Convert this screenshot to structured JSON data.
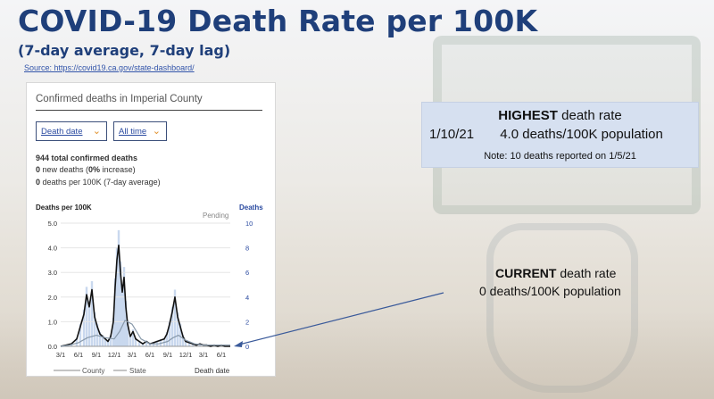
{
  "slide": {
    "title": "COVID-19 Death Rate per 100K",
    "subtitle": "(7-day average, 7-day lag)",
    "source": "Source: https://covid19.ca.gov/state-dashboard/"
  },
  "panel": {
    "title": "Confirmed deaths in Imperial County",
    "dropdown_1": "Death date",
    "dropdown_2": "All time",
    "total_value": "944",
    "total_label": " total confirmed deaths",
    "new_value": "0",
    "new_label": " new deaths (",
    "new_pct": "0%",
    "new_tail": " increase)",
    "rate_value": "0",
    "rate_label": " deaths per 100K (7-day average)"
  },
  "chart_data": {
    "type": "line",
    "ylabel_left": "Deaths per 100K",
    "ylabel_right": "Deaths",
    "pending_label": "Pending",
    "xlabel": "Death date",
    "categories": [
      "3/1",
      "6/1",
      "9/1",
      "12/1",
      "3/1",
      "6/1",
      "9/1",
      "12/1",
      "3/1",
      "6/1"
    ],
    "ylim_left": [
      0,
      5
    ],
    "yticks_left": [
      "0.0",
      "1.0",
      "2.0",
      "3.0",
      "4.0",
      "5.0"
    ],
    "ylim_right": [
      0,
      10
    ],
    "yticks_right": [
      "0",
      "2",
      "4",
      "6",
      "8",
      "10"
    ],
    "legend": [
      "County",
      "State"
    ],
    "series": [
      {
        "name": "County",
        "color": "#111111",
        "x": [
          0,
          0.3,
          0.6,
          0.9,
          1.1,
          1.3,
          1.45,
          1.6,
          1.75,
          1.9,
          2.05,
          2.2,
          2.35,
          2.5,
          2.65,
          2.8,
          2.95,
          3.05,
          3.15,
          3.25,
          3.35,
          3.45,
          3.55,
          3.65,
          3.75,
          3.9,
          4.05,
          4.2,
          4.4,
          4.6,
          4.8,
          5.0,
          5.2,
          5.4,
          5.6,
          5.8,
          5.95,
          6.1,
          6.25,
          6.4,
          6.55,
          6.7,
          6.85,
          7.0,
          7.2,
          7.4,
          7.6,
          7.8,
          8.0,
          8.2,
          8.4,
          8.6,
          8.8,
          9.0,
          9.2,
          9.5
        ],
        "values": [
          0,
          0.05,
          0.1,
          0.3,
          0.8,
          1.3,
          2.1,
          1.6,
          2.3,
          1.2,
          0.8,
          0.5,
          0.4,
          0.3,
          0.2,
          0.4,
          1.0,
          2.4,
          3.5,
          4.1,
          3.0,
          2.2,
          2.8,
          1.6,
          0.9,
          0.4,
          0.6,
          0.3,
          0.2,
          0.1,
          0.2,
          0.1,
          0.15,
          0.2,
          0.25,
          0.3,
          0.5,
          0.9,
          1.4,
          2.0,
          1.2,
          0.8,
          0.4,
          0.2,
          0.15,
          0.1,
          0.05,
          0.1,
          0.05,
          0.05,
          0,
          0.05,
          0,
          0.05,
          0,
          0
        ]
      },
      {
        "name": "State",
        "color": "#8899aa",
        "x": [
          0,
          0.5,
          1.0,
          1.5,
          2.0,
          2.5,
          3.0,
          3.3,
          3.6,
          4.0,
          4.5,
          5.0,
          5.5,
          6.0,
          6.3,
          6.6,
          7.0,
          7.5,
          8.0,
          8.5,
          9.0,
          9.5
        ],
        "values": [
          0,
          0.05,
          0.15,
          0.35,
          0.45,
          0.35,
          0.3,
          0.6,
          1.05,
          0.9,
          0.3,
          0.1,
          0.1,
          0.2,
          0.35,
          0.45,
          0.25,
          0.1,
          0.05,
          0.05,
          0.05,
          0.05
        ]
      }
    ]
  },
  "highest": {
    "bold": "HIGHEST",
    "rest": " death rate",
    "line": "1/10/21       4.0 deaths/100K population",
    "note": "Note: 10 deaths reported on 1/5/21"
  },
  "current": {
    "bold": "CURRENT",
    "rest": " death rate",
    "line": "0 deaths/100K population"
  }
}
